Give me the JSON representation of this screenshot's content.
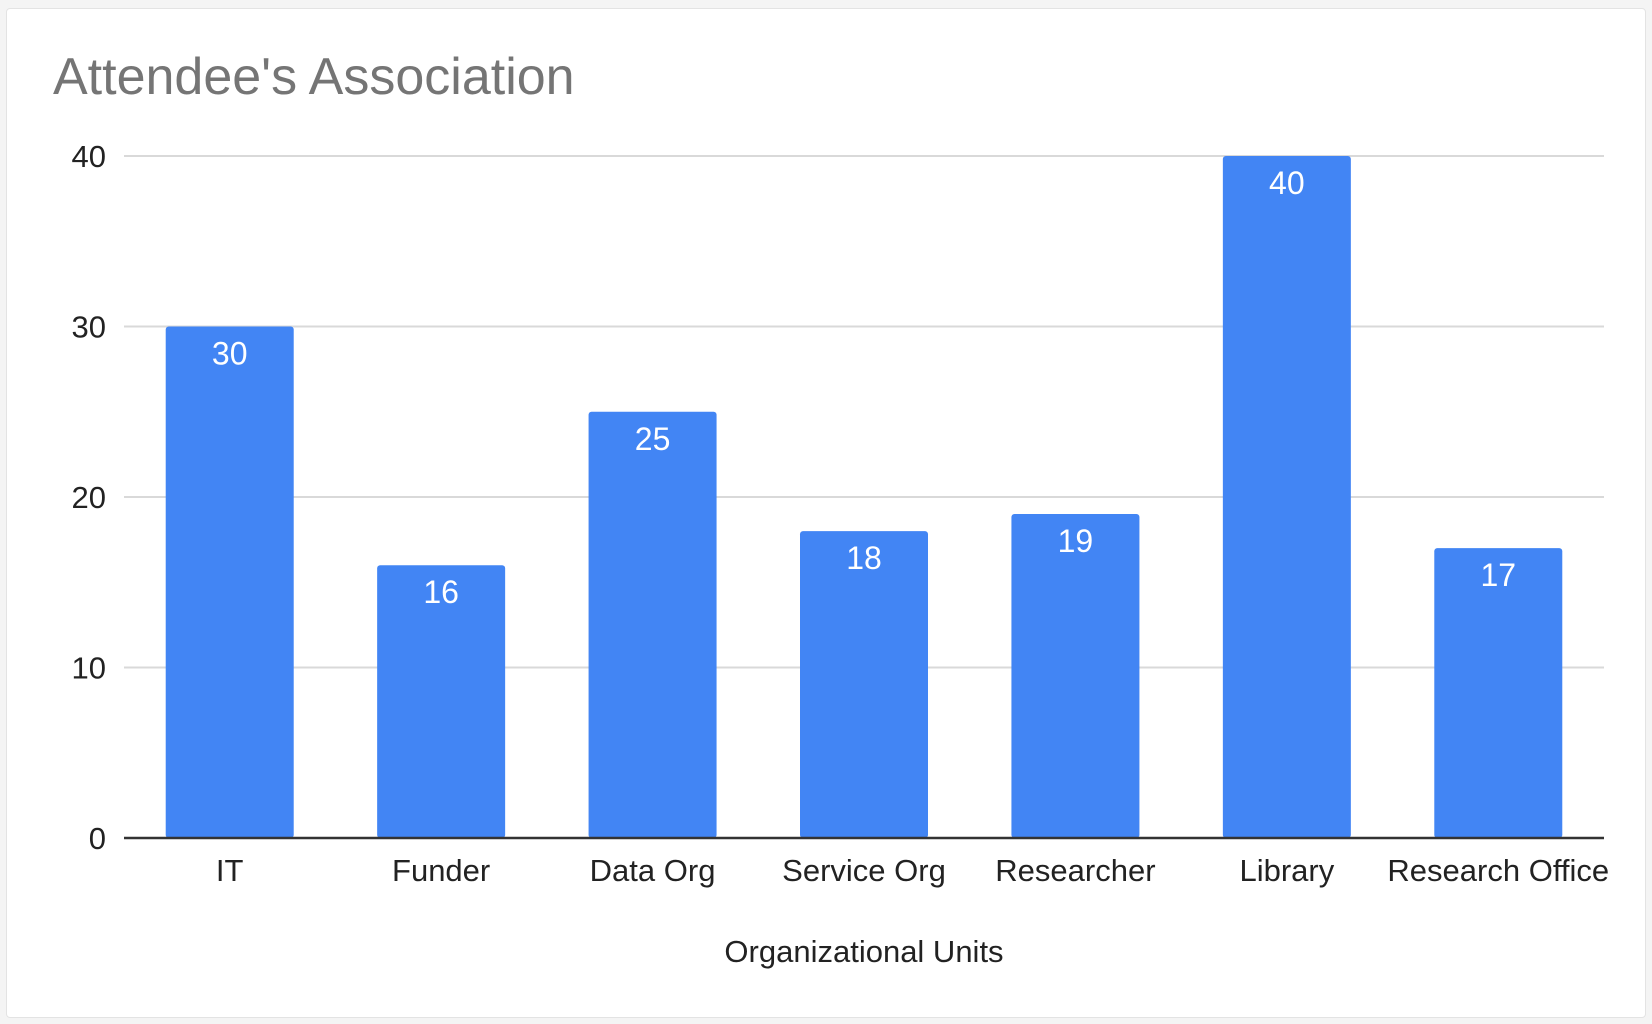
{
  "chart_data": {
    "type": "bar",
    "title": "Attendee's Association",
    "xlabel": "Organizational Units",
    "ylabel": "",
    "categories": [
      "IT",
      "Funder",
      "Data Org",
      "Service Org",
      "Researcher",
      "Library",
      "Research Office"
    ],
    "values": [
      30,
      16,
      25,
      18,
      19,
      40,
      17
    ],
    "data_labels": [
      "30",
      "16",
      "25",
      "18",
      "19",
      "40",
      "17"
    ],
    "ylim": [
      0,
      40
    ],
    "yticks": [
      0,
      10,
      20,
      30,
      40
    ],
    "ytick_labels": [
      "0",
      "10",
      "20",
      "30",
      "40"
    ],
    "grid": true,
    "legend": "none",
    "colors": {
      "bar": "#4285f4",
      "gridline": "#d9d9d9",
      "baseline": "#333333",
      "title": "#757575",
      "text": "#222222"
    }
  }
}
